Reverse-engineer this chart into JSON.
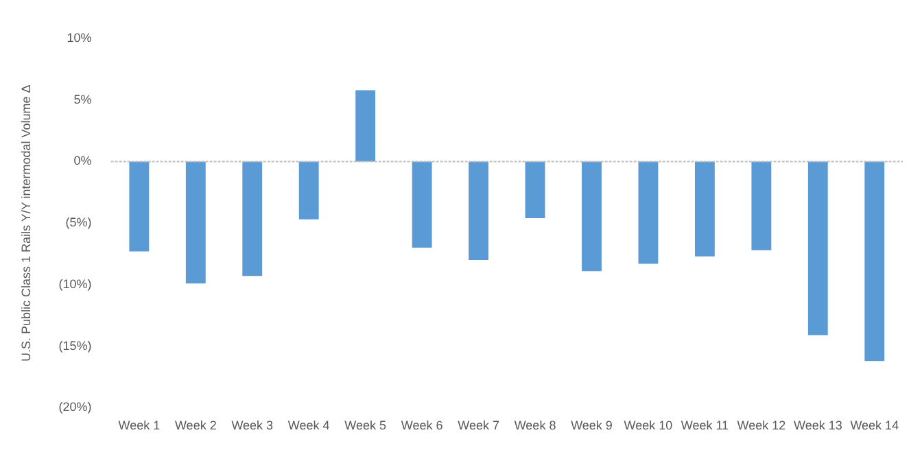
{
  "chart_data": {
    "type": "bar",
    "ylabel": "U.S. Public Class 1 Rails Y/Y intermodal Volume Δ",
    "categories": [
      "Week 1",
      "Week 2",
      "Week 3",
      "Week 4",
      "Week 5",
      "Week 6",
      "Week 7",
      "Week 8",
      "Week 9",
      "Week 10",
      "Week 11",
      "Week 12",
      "Week 13",
      "Week 14"
    ],
    "values": [
      -7.3,
      -9.9,
      -9.3,
      -4.7,
      5.8,
      -7.0,
      -8.0,
      -4.6,
      -8.9,
      -8.3,
      -7.7,
      -7.2,
      -14.1,
      -16.2
    ],
    "color": "#5b9bd5",
    "ylim": [
      -20,
      10
    ],
    "yticks": [
      {
        "value": -20,
        "label": "(20%)"
      },
      {
        "value": -15,
        "label": "(15%)"
      },
      {
        "value": -10,
        "label": "(10%)"
      },
      {
        "value": -5,
        "label": "(5%)"
      },
      {
        "value": 0,
        "label": "0%"
      },
      {
        "value": 5,
        "label": "5%"
      },
      {
        "value": 10,
        "label": "10%"
      }
    ],
    "ref_lines": [
      {
        "axis": "y",
        "value": 0,
        "color": "#bfbfbf",
        "line_style": "dotted"
      }
    ],
    "grid": false,
    "legend": false
  }
}
